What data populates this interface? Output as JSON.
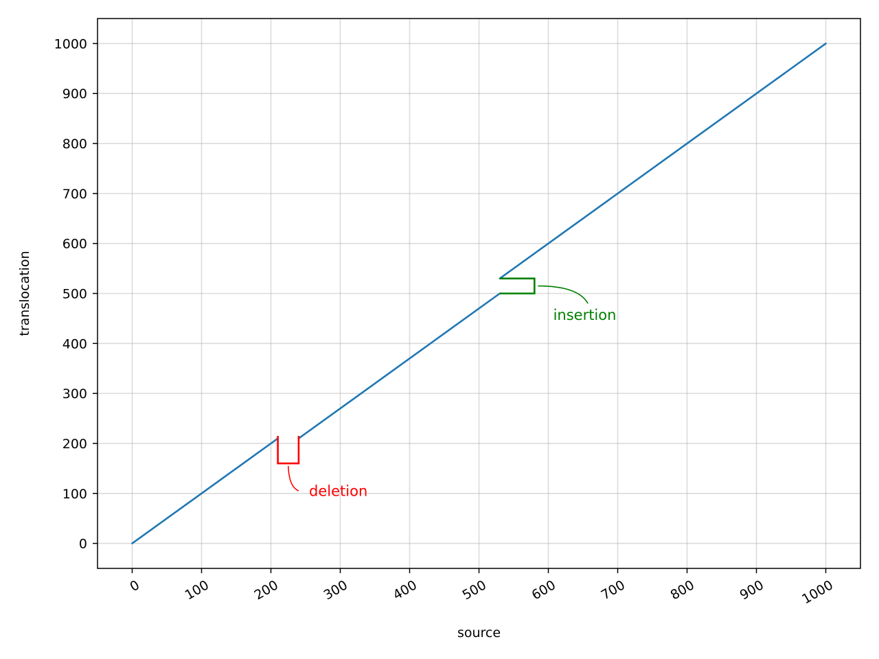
{
  "chart_data": {
    "type": "line",
    "title": "",
    "xlabel": "source",
    "ylabel": "translocation",
    "xlim": [
      -50,
      1050
    ],
    "ylim": [
      -50,
      1050
    ],
    "x_ticks": [
      0,
      100,
      200,
      300,
      400,
      500,
      600,
      700,
      800,
      900,
      1000
    ],
    "x_tick_labels": [
      "0",
      "100",
      "200",
      "300",
      "400",
      "500",
      "600",
      "700",
      "800",
      "900",
      "1000"
    ],
    "y_ticks": [
      0,
      100,
      200,
      300,
      400,
      500,
      600,
      700,
      800,
      900,
      1000
    ],
    "y_tick_labels": [
      "0",
      "100",
      "200",
      "300",
      "400",
      "500",
      "600",
      "700",
      "800",
      "900",
      "1000"
    ],
    "grid": true,
    "series": [
      {
        "color": "#1f77b4",
        "segments": [
          [
            [
              0,
              0
            ],
            [
              210,
              210
            ]
          ],
          [
            [
              240,
              210
            ],
            [
              530,
              500
            ]
          ],
          [
            [
              530,
              530
            ],
            [
              1000,
              1000
            ]
          ]
        ]
      }
    ],
    "annotations": [
      {
        "text": "deletion",
        "color": "#ff0000",
        "bracket": [
          [
            210,
            215
          ],
          [
            210,
            160
          ],
          [
            240,
            160
          ],
          [
            240,
            215
          ]
        ],
        "text_at": [
          255,
          95
        ],
        "arrow_from": [
          240,
          105
        ],
        "arrow_to": [
          225,
          155
        ]
      },
      {
        "text": "insertion",
        "color": "#008000",
        "bracket": [
          [
            530,
            530
          ],
          [
            580,
            530
          ],
          [
            580,
            500
          ],
          [
            530,
            500
          ]
        ],
        "text_at": [
          607,
          447
        ],
        "arrow_from": [
          657,
          480
        ],
        "arrow_to": [
          585,
          515
        ]
      }
    ]
  }
}
